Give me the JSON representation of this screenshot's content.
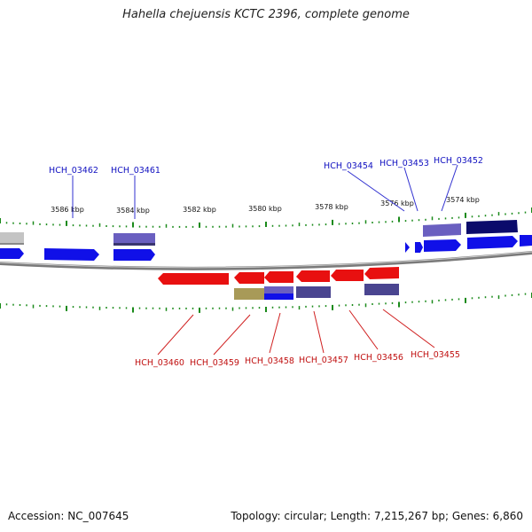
{
  "title": "Hahella chejuensis KCTC 2396, complete genome",
  "footer": {
    "accession": "Accession: NC_007645",
    "topology": "Topology: circular; Length: 7,215,267 bp; Genes: 6,860"
  },
  "colors": {
    "forward_gene": "#1010e8",
    "reverse_gene": "#e81010",
    "purple_gene": "#6a5fc0",
    "navy_gene": "#0b0b6b",
    "olive_gene": "#a89a58",
    "gray_gene": "#c0c0c0",
    "backbone": "#808080",
    "tick": "#1a8a1a",
    "forward_label": "#1010c0",
    "reverse_label": "#c01010"
  },
  "scale": {
    "ticks": [
      "3586 kbp",
      "3584 kbp",
      "3582 kbp",
      "3580 kbp",
      "3578 kbp",
      "3576 kbp",
      "3574 kbp"
    ]
  },
  "top_labels": [
    "HCH_03462",
    "HCH_03461",
    "HCH_03454",
    "HCH_03453",
    "HCH_03452"
  ],
  "bottom_labels": [
    "HCH_03460",
    "HCH_03459",
    "HCH_03458",
    "HCH_03457",
    "HCH_03456",
    "HCH_03455"
  ]
}
